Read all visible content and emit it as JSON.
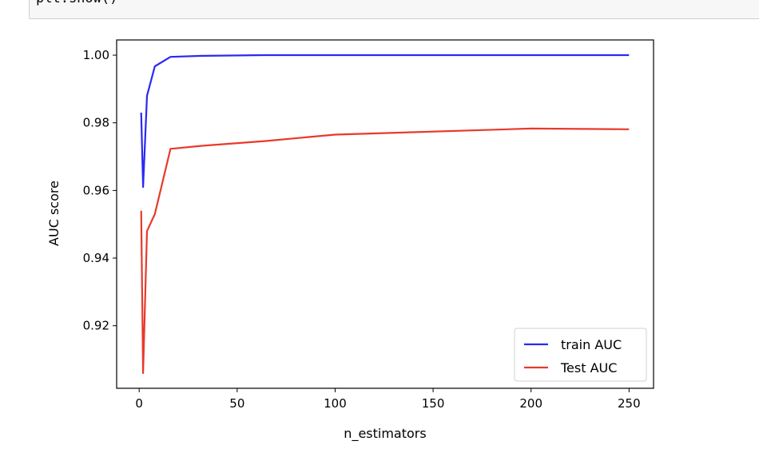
{
  "code_cell": {
    "text": "plt.show()"
  },
  "chart_data": {
    "type": "line",
    "title": "",
    "xlabel": "n_estimators",
    "ylabel": "AUC score",
    "xlim": [
      -11.5,
      262.5
    ],
    "ylim": [
      0.9015,
      1.0045
    ],
    "xticks": [
      0,
      50,
      100,
      150,
      200,
      250
    ],
    "yticks": [
      0.92,
      0.94,
      0.96,
      0.98,
      1.0
    ],
    "xtick_labels": [
      "0",
      "50",
      "100",
      "150",
      "200",
      "250"
    ],
    "ytick_labels": [
      "0.92",
      "0.94",
      "0.96",
      "0.98",
      "1.00"
    ],
    "grid": false,
    "legend_position": "lower-right",
    "series": [
      {
        "name": "train AUC",
        "color": "#2929f5",
        "x": [
          1,
          2,
          4,
          8,
          16,
          32,
          64,
          100,
          200,
          250
        ],
        "y": [
          0.983,
          0.961,
          0.988,
          0.9967,
          0.9995,
          0.9998,
          1.0,
          1.0,
          1.0,
          1.0
        ]
      },
      {
        "name": "Test AUC",
        "color": "#e8392c",
        "x": [
          1,
          2,
          4,
          8,
          16,
          32,
          64,
          100,
          200,
          250
        ],
        "y": [
          0.954,
          0.906,
          0.948,
          0.953,
          0.9723,
          0.9732,
          0.9746,
          0.9765,
          0.9783,
          0.9781
        ]
      }
    ]
  }
}
